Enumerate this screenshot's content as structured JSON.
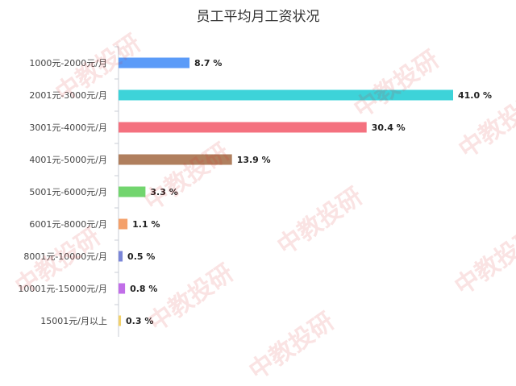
{
  "chart_data": {
    "type": "bar",
    "orientation": "horizontal",
    "title": "员工平均月工资状况",
    "categories": [
      "1000元-2000元/月",
      "2001元-3000元/月",
      "3001元-4000元/月",
      "4001元-5000元/月",
      "5001元-6000元/月",
      "6001元-8000元/月",
      "8001元-10000元/月",
      "10001元-15000元/月",
      "15001元/月以上"
    ],
    "values": [
      8.7,
      41.0,
      30.4,
      13.9,
      3.3,
      1.1,
      0.5,
      0.8,
      0.3
    ],
    "value_labels": [
      "8.7 %",
      "41.0 %",
      "30.4 %",
      "13.9 %",
      "3.3 %",
      "1.1 %",
      "0.5 %",
      "0.8 %",
      "0.3 %"
    ],
    "colors": [
      "#5b9bf8",
      "#3dd3d9",
      "#f4717f",
      "#b07f5e",
      "#72d56e",
      "#f4a06a",
      "#7a86d8",
      "#c16ee8",
      "#f2d16b"
    ],
    "xlabel": "",
    "ylabel": "",
    "grid": false,
    "legend": "none"
  },
  "watermark": "中教投研"
}
